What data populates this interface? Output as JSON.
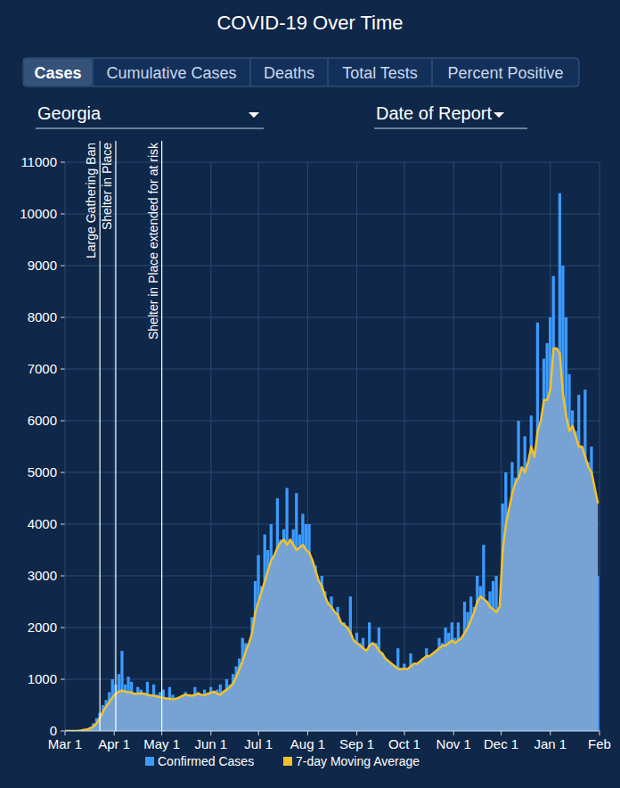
{
  "controls": {
    "tabs": [
      "Cases",
      "Cumulative Cases",
      "Deaths",
      "Total Tests",
      "Percent Positive"
    ],
    "active_tab": "Cases",
    "dropdowns": [
      "Georgia",
      "Date of Report"
    ]
  },
  "chart_data": {
    "type": "bar",
    "title": "COVID-19 Over Time",
    "x": [
      0,
      2,
      4,
      6,
      8,
      10,
      12,
      14,
      16,
      18,
      20,
      22,
      24,
      26,
      28,
      30,
      32,
      34,
      36,
      38,
      40,
      42,
      44,
      46,
      48,
      50,
      52,
      54,
      56,
      58,
      60,
      62,
      64,
      66,
      68,
      70,
      72,
      74,
      76,
      78,
      80,
      82,
      84,
      86,
      88,
      90,
      92,
      94,
      96,
      98,
      100,
      102,
      104,
      106,
      108,
      110,
      112,
      114,
      116,
      118,
      120,
      122,
      124,
      126,
      128,
      130,
      132,
      134,
      136,
      138,
      140,
      142,
      144,
      146,
      148,
      150,
      152,
      154,
      156,
      158,
      160,
      162,
      164,
      166,
      168,
      170,
      172,
      174,
      176,
      178,
      180,
      182,
      184,
      186,
      188,
      190,
      192,
      194,
      196,
      198,
      200,
      202,
      204,
      206,
      208,
      210,
      212,
      214,
      216,
      218,
      220,
      222,
      224,
      226,
      228,
      230,
      232,
      234,
      236,
      238,
      240,
      242,
      244,
      246,
      248,
      250,
      252,
      254,
      256,
      258,
      260,
      262,
      264,
      266,
      268,
      270,
      272,
      274,
      276,
      278,
      280,
      282,
      284,
      286,
      288,
      290,
      292,
      294,
      296,
      298,
      300,
      302,
      304,
      306,
      308,
      310,
      312,
      314,
      316,
      318,
      320,
      322,
      324,
      326,
      328,
      330,
      332,
      334,
      336
    ],
    "series": [
      {
        "name": "Confirmed Cases",
        "type": "bar",
        "color": "#3d9bff",
        "values": [
          0,
          0,
          0,
          5,
          10,
          20,
          30,
          40,
          80,
          150,
          250,
          350,
          500,
          600,
          750,
          1000,
          900,
          1100,
          1550,
          900,
          1050,
          950,
          700,
          850,
          800,
          700,
          950,
          650,
          900,
          700,
          750,
          800,
          600,
          850,
          700,
          650,
          600,
          550,
          750,
          650,
          700,
          850,
          750,
          600,
          800,
          700,
          850,
          700,
          800,
          900,
          750,
          1000,
          900,
          1100,
          1250,
          1400,
          1800,
          1700,
          1600,
          2200,
          2900,
          3400,
          2800,
          3800,
          3500,
          4000,
          3100,
          4500,
          3700,
          3900,
          4700,
          3500,
          3900,
          4600,
          3800,
          4200,
          4000,
          4000,
          3300,
          3200,
          2900,
          3000,
          2700,
          2500,
          2600,
          2200,
          2400,
          2000,
          2100,
          1800,
          2600,
          1600,
          1900,
          1700,
          1800,
          1500,
          2100,
          1600,
          1700,
          2000,
          1500,
          1400,
          1200,
          1300,
          1100,
          1600,
          1000,
          1300,
          1200,
          1500,
          1100,
          1200,
          1300,
          1400,
          1600,
          1200,
          1500,
          1300,
          1800,
          1700,
          2000,
          1900,
          2100,
          1800,
          2100,
          1600,
          2500,
          2300,
          2600,
          2400,
          3000,
          2800,
          3600,
          2500,
          2700,
          2900,
          3000,
          2300,
          4400,
          5000,
          4300,
          5200,
          4900,
          6000,
          4700,
          5700,
          5000,
          6100,
          4600,
          7900,
          5500,
          7200,
          7500,
          8000,
          8800,
          6800,
          10400,
          9000,
          8000,
          6900,
          6200,
          5800,
          6500,
          5400,
          6600,
          5200,
          5500,
          4600,
          3000
        ]
      },
      {
        "name": "7-day Moving Average",
        "type": "line",
        "color": "#f2c12e",
        "values": [
          0,
          0,
          0,
          2,
          5,
          10,
          20,
          30,
          50,
          90,
          150,
          250,
          380,
          480,
          560,
          650,
          720,
          760,
          780,
          760,
          750,
          740,
          720,
          720,
          730,
          720,
          700,
          690,
          680,
          670,
          650,
          640,
          630,
          620,
          610,
          620,
          650,
          680,
          700,
          690,
          680,
          700,
          720,
          700,
          690,
          720,
          740,
          760,
          720,
          700,
          760,
          800,
          850,
          920,
          1050,
          1200,
          1350,
          1550,
          1700,
          1900,
          2300,
          2500,
          2700,
          2900,
          3100,
          3300,
          3400,
          3550,
          3650,
          3700,
          3600,
          3700,
          3600,
          3500,
          3550,
          3600,
          3500,
          3450,
          3300,
          3100,
          2900,
          2800,
          2600,
          2450,
          2400,
          2300,
          2250,
          2100,
          2050,
          2000,
          1900,
          1750,
          1700,
          1650,
          1600,
          1550,
          1650,
          1700,
          1650,
          1550,
          1500,
          1400,
          1350,
          1300,
          1250,
          1200,
          1200,
          1200,
          1200,
          1250,
          1300,
          1300,
          1350,
          1400,
          1450,
          1450,
          1500,
          1550,
          1600,
          1650,
          1650,
          1700,
          1750,
          1700,
          1750,
          1800,
          1900,
          2000,
          2150,
          2300,
          2500,
          2600,
          2550,
          2500,
          2400,
          2350,
          2300,
          2400,
          3500,
          4000,
          4300,
          4600,
          4800,
          4900,
          5100,
          5000,
          5200,
          5500,
          5300,
          5800,
          6000,
          6400,
          6400,
          6600,
          7400,
          7400,
          7300,
          6500,
          6100,
          5800,
          5900,
          5700,
          5500,
          5500,
          5300,
          5100,
          5000,
          4700,
          4400
        ]
      }
    ],
    "xlim": [
      0,
      337
    ],
    "xticks": [
      {
        "value": 0,
        "label": "Mar 1"
      },
      {
        "value": 31,
        "label": "Apr 1"
      },
      {
        "value": 61,
        "label": "May 1"
      },
      {
        "value": 92,
        "label": "Jun 1"
      },
      {
        "value": 122,
        "label": "Jul 1"
      },
      {
        "value": 153,
        "label": "Aug 1"
      },
      {
        "value": 184,
        "label": "Sep 1"
      },
      {
        "value": 214,
        "label": "Oct 1"
      },
      {
        "value": 245,
        "label": "Nov 1"
      },
      {
        "value": 275,
        "label": "Dec 1"
      },
      {
        "value": 306,
        "label": "Jan 1"
      },
      {
        "value": 337,
        "label": "Feb"
      }
    ],
    "ylim": [
      0,
      11000
    ],
    "yticks": [
      0,
      1000,
      2000,
      3000,
      4000,
      5000,
      6000,
      7000,
      8000,
      9000,
      10000,
      11000
    ],
    "annotations": [
      {
        "x": 22,
        "label": "Large Gathering Ban"
      },
      {
        "x": 32,
        "label": "Shelter in Place"
      },
      {
        "x": 61,
        "label": "Shelter in Place extended for at risk"
      }
    ],
    "grid": true,
    "legend": "bottom"
  }
}
